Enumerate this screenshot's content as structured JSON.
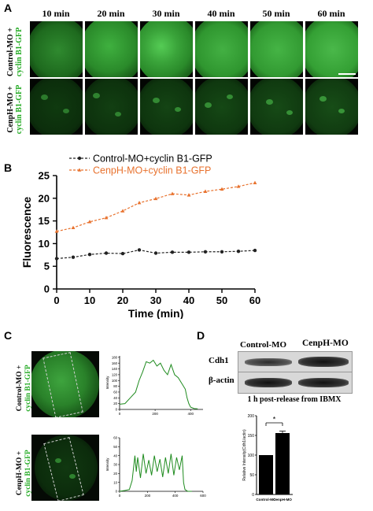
{
  "panel_A": {
    "letter": "A",
    "times": [
      "10 min",
      "20 min",
      "30 min",
      "40 min",
      "50 min",
      "60 min"
    ],
    "rows": [
      {
        "line1": "Control-MO +",
        "line2": "cyclin B1-GFP"
      },
      {
        "line1": "CenpH-MO +",
        "line2": "cyclin B1-GFP"
      }
    ]
  },
  "panel_B": {
    "letter": "B",
    "chart_data": {
      "type": "line",
      "x": [
        0,
        5,
        10,
        15,
        20,
        25,
        30,
        35,
        40,
        45,
        50,
        55,
        60
      ],
      "series": [
        {
          "name": "Control-MO+cyclin B1-GFP",
          "color": "#222222",
          "marker": "circle",
          "values": [
            6.7,
            7.0,
            7.6,
            7.9,
            7.8,
            8.6,
            7.9,
            8.1,
            8.1,
            8.2,
            8.2,
            8.3,
            8.5
          ]
        },
        {
          "name": "CenpH-MO+cyclin B1-GFP",
          "color": "#e8722e",
          "marker": "triangle",
          "values": [
            12.7,
            13.5,
            14.8,
            15.7,
            17.2,
            19.0,
            19.9,
            21.0,
            20.7,
            21.5,
            22.0,
            22.6,
            23.4
          ]
        }
      ],
      "xlabel": "Time (min)",
      "ylabel": "Fluorescence",
      "xlim": [
        0,
        60
      ],
      "ylim": [
        0,
        25
      ],
      "xticks": [
        0,
        10,
        20,
        30,
        40,
        50,
        60
      ],
      "yticks": [
        0,
        5,
        10,
        15,
        20,
        25
      ],
      "legend": "top-left",
      "grid": false
    }
  },
  "panel_C": {
    "letter": "C",
    "rows": [
      {
        "line1": "Control-MO +",
        "line2": "cyclin B1-GFP"
      },
      {
        "line1": "CenpH-MO +",
        "line2": "cyclin B1-GFP"
      }
    ],
    "chart_data": [
      {
        "type": "line",
        "ylabel": "Intensity",
        "color": "#1e8b1e",
        "xticks": [
          0,
          200,
          400
        ],
        "yticks": [
          0,
          20,
          40,
          60,
          80,
          100,
          120,
          140,
          160,
          180
        ],
        "xlim": [
          0,
          470
        ],
        "ylim": [
          0,
          185
        ],
        "x": [
          0,
          30,
          60,
          90,
          110,
          130,
          150,
          170,
          190,
          210,
          230,
          250,
          270,
          290,
          310,
          330,
          350,
          370,
          380,
          390,
          400,
          420,
          440
        ],
        "values": [
          18,
          20,
          40,
          60,
          100,
          130,
          165,
          160,
          170,
          150,
          160,
          135,
          120,
          155,
          120,
          110,
          90,
          70,
          40,
          20,
          8,
          3,
          2
        ]
      },
      {
        "type": "line",
        "ylabel": "Intensity",
        "color": "#1e8b1e",
        "xticks": [
          0,
          200,
          400,
          600
        ],
        "yticks": [
          0,
          10,
          20,
          30,
          40,
          50,
          60
        ],
        "xlim": [
          0,
          600
        ],
        "ylim": [
          0,
          60
        ],
        "x": [
          0,
          40,
          70,
          90,
          110,
          120,
          130,
          150,
          170,
          190,
          210,
          230,
          250,
          270,
          290,
          310,
          330,
          350,
          370,
          390,
          410,
          430,
          450,
          460,
          470,
          490,
          520
        ],
        "values": [
          0,
          1,
          2,
          12,
          40,
          22,
          38,
          15,
          42,
          20,
          35,
          18,
          40,
          22,
          36,
          16,
          38,
          20,
          42,
          18,
          38,
          24,
          40,
          10,
          2,
          0,
          0
        ]
      }
    ]
  },
  "panel_D": {
    "letter": "D",
    "lanes": [
      "Control-MO",
      "CenpH-MO"
    ],
    "blot_rows": [
      "Cdh1",
      "β-actin"
    ],
    "caption": "1 h post-release from IBMX",
    "chart_data": {
      "type": "bar",
      "categories": [
        "Control-MO",
        "CenpH-MO"
      ],
      "values": [
        100,
        156
      ],
      "errors": [
        0,
        5
      ],
      "ylabel": "Relative Intensity(Cdh1/actin)",
      "ylim": [
        0,
        200
      ],
      "yticks": [
        0,
        50,
        100,
        150,
        200
      ],
      "significance": "*"
    }
  }
}
